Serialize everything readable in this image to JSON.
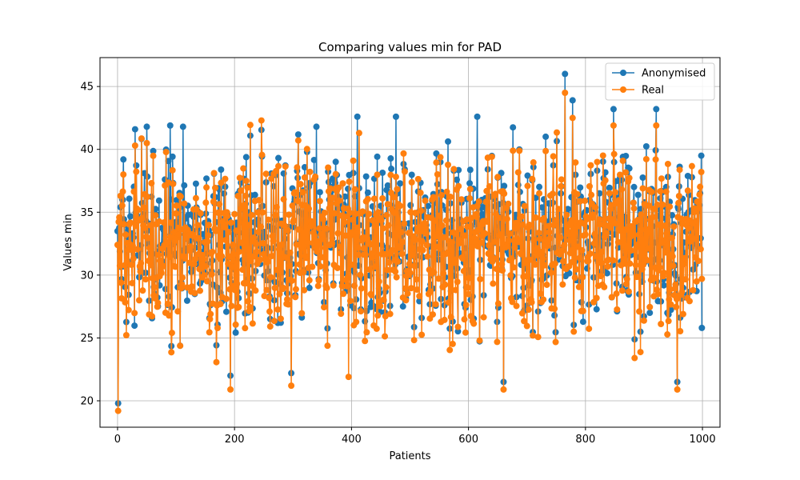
{
  "chart_data": {
    "type": "line",
    "title": "Comparing values min for PAD",
    "xlabel": "Patients",
    "ylabel": "Values min",
    "xlim": [
      -30,
      1030
    ],
    "ylim": [
      17.9,
      47.3
    ],
    "xticks": [
      0,
      200,
      400,
      600,
      800,
      1000
    ],
    "yticks": [
      20,
      25,
      30,
      35,
      40,
      45
    ],
    "grid": true,
    "legend_position": "top-right",
    "markers": "circle",
    "n_points": 1000,
    "value_range": [
      19.2,
      46.0
    ],
    "series": [
      {
        "name": "Anonymised",
        "color": "#1f77b4",
        "key_points": [
          [
            0,
            33.5
          ],
          [
            1,
            19.8
          ],
          [
            5,
            35.4
          ],
          [
            10,
            39.2
          ],
          [
            30,
            41.6
          ],
          [
            50,
            41.8
          ],
          [
            90,
            41.9
          ],
          [
            112,
            41.8
          ],
          [
            193,
            22.0
          ],
          [
            297,
            22.2
          ],
          [
            340,
            41.8
          ],
          [
            410,
            42.6
          ],
          [
            476,
            42.6
          ],
          [
            615,
            42.6
          ],
          [
            660,
            21.5
          ],
          [
            765,
            46.0
          ],
          [
            778,
            43.9
          ],
          [
            848,
            43.2
          ],
          [
            921,
            43.2
          ],
          [
            957,
            21.5
          ],
          [
            998,
            39.5
          ],
          [
            999,
            25.8
          ]
        ]
      },
      {
        "name": "Real",
        "color": "#ff7f0e",
        "key_points": [
          [
            0,
            32.4
          ],
          [
            1,
            19.2
          ],
          [
            5,
            36.3
          ],
          [
            10,
            38.0
          ],
          [
            30,
            40.3
          ],
          [
            50,
            40.5
          ],
          [
            193,
            20.9
          ],
          [
            297,
            21.2
          ],
          [
            395,
            21.9
          ],
          [
            413,
            41.3
          ],
          [
            660,
            20.9
          ],
          [
            765,
            44.5
          ],
          [
            778,
            42.5
          ],
          [
            848,
            41.9
          ],
          [
            921,
            41.9
          ],
          [
            957,
            20.9
          ],
          [
            998,
            38.2
          ],
          [
            999,
            29.7
          ]
        ]
      }
    ]
  }
}
